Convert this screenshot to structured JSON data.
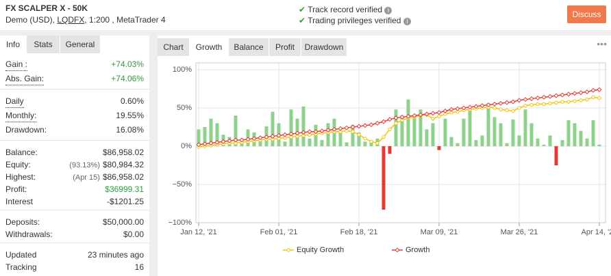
{
  "header": {
    "title": "FX SCALPER X - 50K",
    "account": "Demo (USD),",
    "broker": "LQDFX",
    "details": ", 1:200 , MetaTrader 4",
    "verified": [
      "Track record verified",
      "Trading privileges verified"
    ],
    "button": "Discuss"
  },
  "left_tabs": [
    "Info",
    "Stats",
    "General"
  ],
  "stats": [
    [
      {
        "label": "Gain :",
        "value": "+74.03%",
        "color": "#2e9e3e"
      },
      {
        "label": "Abs. Gain:",
        "value": "+74.06%",
        "color": "#2e9e3e"
      }
    ],
    [
      {
        "label": "Daily",
        "value": "0.60%"
      },
      {
        "label": "Monthly:",
        "value": "19.55%"
      },
      {
        "label": "Drawdown:",
        "value": "16.08%"
      }
    ],
    [
      {
        "label": "Balance:",
        "value": "$86,958.02"
      },
      {
        "label": "Equity:",
        "note": "(93.13%)",
        "value": "$80,984.32"
      },
      {
        "label": "Highest:",
        "note": "(Apr 15)",
        "value": "$86,958.02"
      },
      {
        "label": "Profit:",
        "value": "$36999.31",
        "color": "#2e9e3e"
      },
      {
        "label": "Interest",
        "value": "-$1201.25"
      }
    ],
    [
      {
        "label": "Deposits:",
        "value": "$50,000.00"
      },
      {
        "label": "Withdrawals:",
        "value": "$0.00"
      }
    ],
    [
      {
        "label": "Updated",
        "value": "23 minutes ago"
      },
      {
        "label": "Tracking",
        "value": "16"
      }
    ]
  ],
  "right_tabs": [
    "Chart",
    "Growth",
    "Balance",
    "Profit",
    "Drawdown"
  ],
  "chart_data": {
    "type": "bar-line",
    "categories": [
      "Jan 12, '21",
      null,
      null,
      null,
      null,
      null,
      null,
      null,
      null,
      null,
      null,
      null,
      null,
      "Feb 01, '21",
      null,
      null,
      null,
      null,
      null,
      null,
      null,
      null,
      null,
      null,
      null,
      null,
      "Feb 18, '21",
      null,
      null,
      null,
      null,
      null,
      null,
      null,
      null,
      null,
      null,
      null,
      null,
      "Mar 09, '21",
      null,
      null,
      null,
      null,
      null,
      null,
      null,
      null,
      null,
      null,
      null,
      null,
      "Mar 26, '21",
      null,
      null,
      null,
      null,
      null,
      null,
      null,
      null,
      null,
      null,
      null,
      null,
      "Apr 14, '21"
    ],
    "bars": {
      "color": "#8dd18a",
      "values": [
        22,
        25,
        36,
        30,
        15,
        12,
        40,
        10,
        22,
        18,
        8,
        26,
        45,
        30,
        6,
        48,
        36,
        52,
        10,
        28,
        8,
        30,
        36,
        20,
        5,
        28,
        18,
        6,
        8,
        10,
        -83,
        -10,
        48,
        40,
        61,
        40,
        48,
        22,
        30,
        -5,
        36,
        12,
        4,
        36,
        48,
        8,
        14,
        56,
        38,
        30,
        4,
        35,
        14,
        48,
        30,
        10,
        2,
        14,
        -25,
        8,
        34,
        30,
        20,
        10,
        34,
        2
      ]
    },
    "series": [
      {
        "name": "Equity Growth",
        "color": "#f2c200",
        "values": [
          -1,
          0,
          1,
          2,
          3,
          4,
          4,
          5,
          6,
          7,
          8,
          9,
          9,
          10,
          11,
          12,
          13,
          14,
          15,
          16,
          17,
          18,
          19,
          19,
          20,
          19,
          15,
          10,
          6,
          4,
          12,
          22,
          30,
          34,
          37,
          38,
          40,
          41,
          36,
          39,
          42,
          44,
          45,
          47,
          48,
          49,
          50,
          51,
          50,
          48,
          47,
          46,
          50,
          53,
          54,
          55,
          55,
          56,
          57,
          58,
          58,
          59,
          60,
          61,
          64,
          63
        ]
      },
      {
        "name": "Growth",
        "color": "#e53935",
        "values": [
          2,
          3,
          4,
          5,
          6,
          7,
          8,
          8,
          9,
          10,
          11,
          12,
          13,
          14,
          15,
          16,
          17,
          18,
          19,
          19,
          20,
          21,
          22,
          23,
          24,
          25,
          26,
          27,
          28,
          30,
          32,
          35,
          37,
          38,
          39,
          40,
          41,
          42,
          43,
          44,
          46,
          48,
          49,
          50,
          51,
          52,
          53,
          54,
          55,
          56,
          57,
          58,
          60,
          61,
          62,
          63,
          64,
          65,
          66,
          67,
          68,
          69,
          70,
          71,
          73,
          74
        ]
      }
    ],
    "ylim": [
      -100,
      100
    ],
    "yticks": [
      {
        "value": -100,
        "label": "−100%"
      },
      {
        "value": -50,
        "label": "−50%"
      },
      {
        "value": 0,
        "label": "0%"
      },
      {
        "value": 50,
        "label": "50%"
      },
      {
        "value": 100,
        "label": "100%"
      }
    ],
    "grid": true
  }
}
